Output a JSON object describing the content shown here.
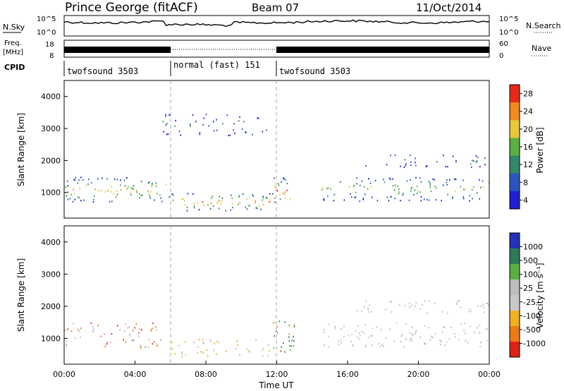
{
  "header": {
    "station": "Prince George (fitACF)",
    "beam": "Beam 07",
    "date": "11/Oct/2014"
  },
  "top_panels": {
    "nsky_label": "N.Sky",
    "nsky_ticks": [
      "10^5",
      "10^0"
    ],
    "nsearch_label": "N.Search",
    "freq_label_1": "Freq.",
    "freq_label_2": "[MHz]",
    "freq_ticks": [
      "18",
      "8"
    ],
    "nave_ticks": [
      "60",
      "0"
    ],
    "nave_label": "Nave",
    "cpid_label": "CPID",
    "cpid_segments": [
      {
        "label": "twofsound 3503",
        "start": 0,
        "end": 6
      },
      {
        "label": "normal (fast) 151",
        "start": 6,
        "end": 12
      },
      {
        "label": "twofsound 3503",
        "start": 12,
        "end": 24
      }
    ]
  },
  "chart_data": [
    {
      "type": "heatmap",
      "title": "",
      "ylabel": "Slant Range [km]",
      "xlabel": "",
      "xlim": [
        0,
        24
      ],
      "ylim": [
        200,
        4500
      ],
      "yticks": [
        "1000",
        "2000",
        "3000",
        "4000"
      ],
      "colorbar": {
        "label": "Power [dB]",
        "ticks": [
          "4",
          "8",
          "12",
          "16",
          "20",
          "24",
          "28"
        ],
        "colors": [
          "#1f1fd6",
          "#2b55c4",
          "#2f8a6a",
          "#58b040",
          "#e8c83a",
          "#f28a1e",
          "#e82a14"
        ]
      },
      "scatter_bands": [
        {
          "t0": 0.0,
          "t1": 6.0,
          "r0": 700,
          "r1": 1500,
          "level": 0.75
        },
        {
          "t0": 6.0,
          "t1": 11.8,
          "r0": 450,
          "r1": 1000,
          "level": 0.85
        },
        {
          "t0": 11.8,
          "t1": 12.8,
          "r0": 600,
          "r1": 1500,
          "level": 1.0
        },
        {
          "t0": 14.5,
          "t1": 24.0,
          "r0": 750,
          "r1": 1500,
          "level": 0.6
        },
        {
          "t0": 16.5,
          "t1": 24.0,
          "r0": 1800,
          "r1": 2200,
          "level": 0.3
        },
        {
          "t0": 5.5,
          "t1": 11.5,
          "r0": 2800,
          "r1": 3500,
          "level": 0.25
        }
      ]
    },
    {
      "type": "heatmap",
      "title": "",
      "ylabel": "Slant Range [km]",
      "xlabel": "Time UT",
      "xlim": [
        0,
        24
      ],
      "ylim": [
        200,
        4500
      ],
      "xticks": [
        "00:00",
        "04:00",
        "08:00",
        "12:00",
        "16:00",
        "20:00",
        "00:00"
      ],
      "yticks": [
        "1000",
        "2000",
        "3000",
        "4000"
      ],
      "colorbar": {
        "label": "Velocity  [m s⁻¹]",
        "ticks": [
          "1000",
          "500",
          "100",
          "25",
          "-25",
          "-100",
          "-500",
          "-1000"
        ],
        "colors": [
          "#2233bb",
          "#2e7a5a",
          "#58b040",
          "#bdbdbd",
          "#c8c8c8",
          "#f0b020",
          "#ee7a16",
          "#e02214"
        ]
      },
      "scatter_bands": [
        {
          "t0": 0.0,
          "t1": 5.5,
          "r0": 700,
          "r1": 1500,
          "level": 0.5
        },
        {
          "t0": 6.0,
          "t1": 11.8,
          "r0": 450,
          "r1": 1000,
          "level": 0.4
        },
        {
          "t0": 11.8,
          "t1": 13.0,
          "r0": 600,
          "r1": 1600,
          "level": 0.9
        },
        {
          "t0": 14.5,
          "t1": 24.0,
          "r0": 750,
          "r1": 1500,
          "level": 0.5
        },
        {
          "t0": 16.5,
          "t1": 24.0,
          "r0": 1800,
          "r1": 2200,
          "level": 0.5
        }
      ]
    }
  ]
}
